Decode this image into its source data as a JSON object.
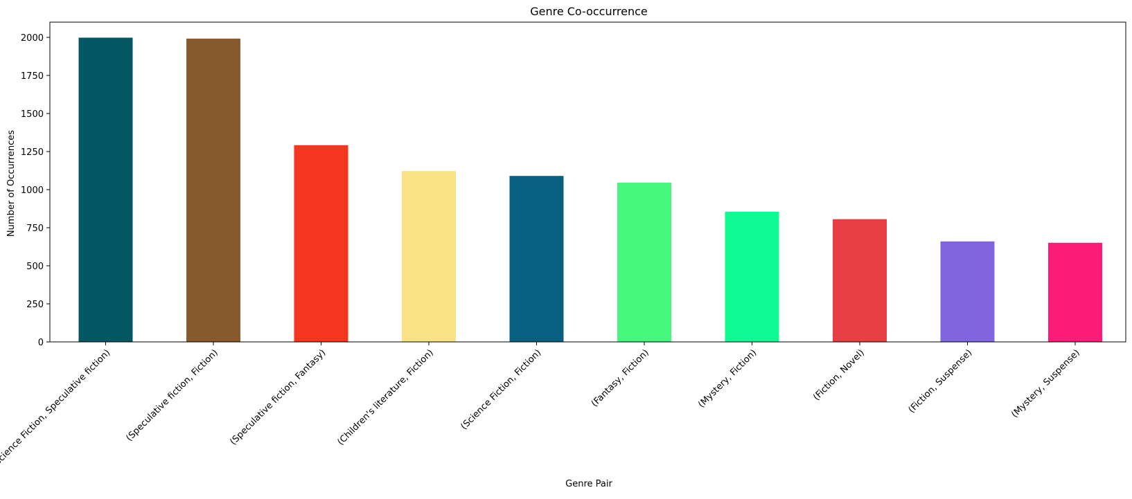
{
  "chart_data": {
    "type": "bar",
    "title": "Genre Co-occurrence",
    "xlabel": "Genre Pair",
    "ylabel": "Number of Occurrences",
    "ylim": [
      0,
      2100
    ],
    "yticks": [
      0,
      250,
      500,
      750,
      1000,
      1250,
      1500,
      1750,
      2000
    ],
    "ytick_labels": [
      "0",
      "250",
      "500",
      "750",
      "1000",
      "1250",
      "1500",
      "1750",
      "2000"
    ],
    "categories": [
      "(Science Fiction, Speculative fiction)",
      "(Speculative fiction, Fiction)",
      "(Speculative fiction, Fantasy)",
      "(Children's literature, Fiction)",
      "(Science Fiction, Fiction)",
      "(Fantasy, Fiction)",
      "(Mystery, Fiction)",
      "(Fiction, Novel)",
      "(Fiction, Suspense)",
      "(Mystery, Suspense)"
    ],
    "values": [
      1998,
      1992,
      1292,
      1122,
      1090,
      1046,
      855,
      806,
      660,
      651
    ],
    "colors": [
      "#035863",
      "#875a2e",
      "#f4361e",
      "#f9e285",
      "#095f80",
      "#48f77e",
      "#0ffa92",
      "#e73f43",
      "#8165e0",
      "#fd1d78"
    ],
    "grid": false,
    "legend": "none"
  }
}
